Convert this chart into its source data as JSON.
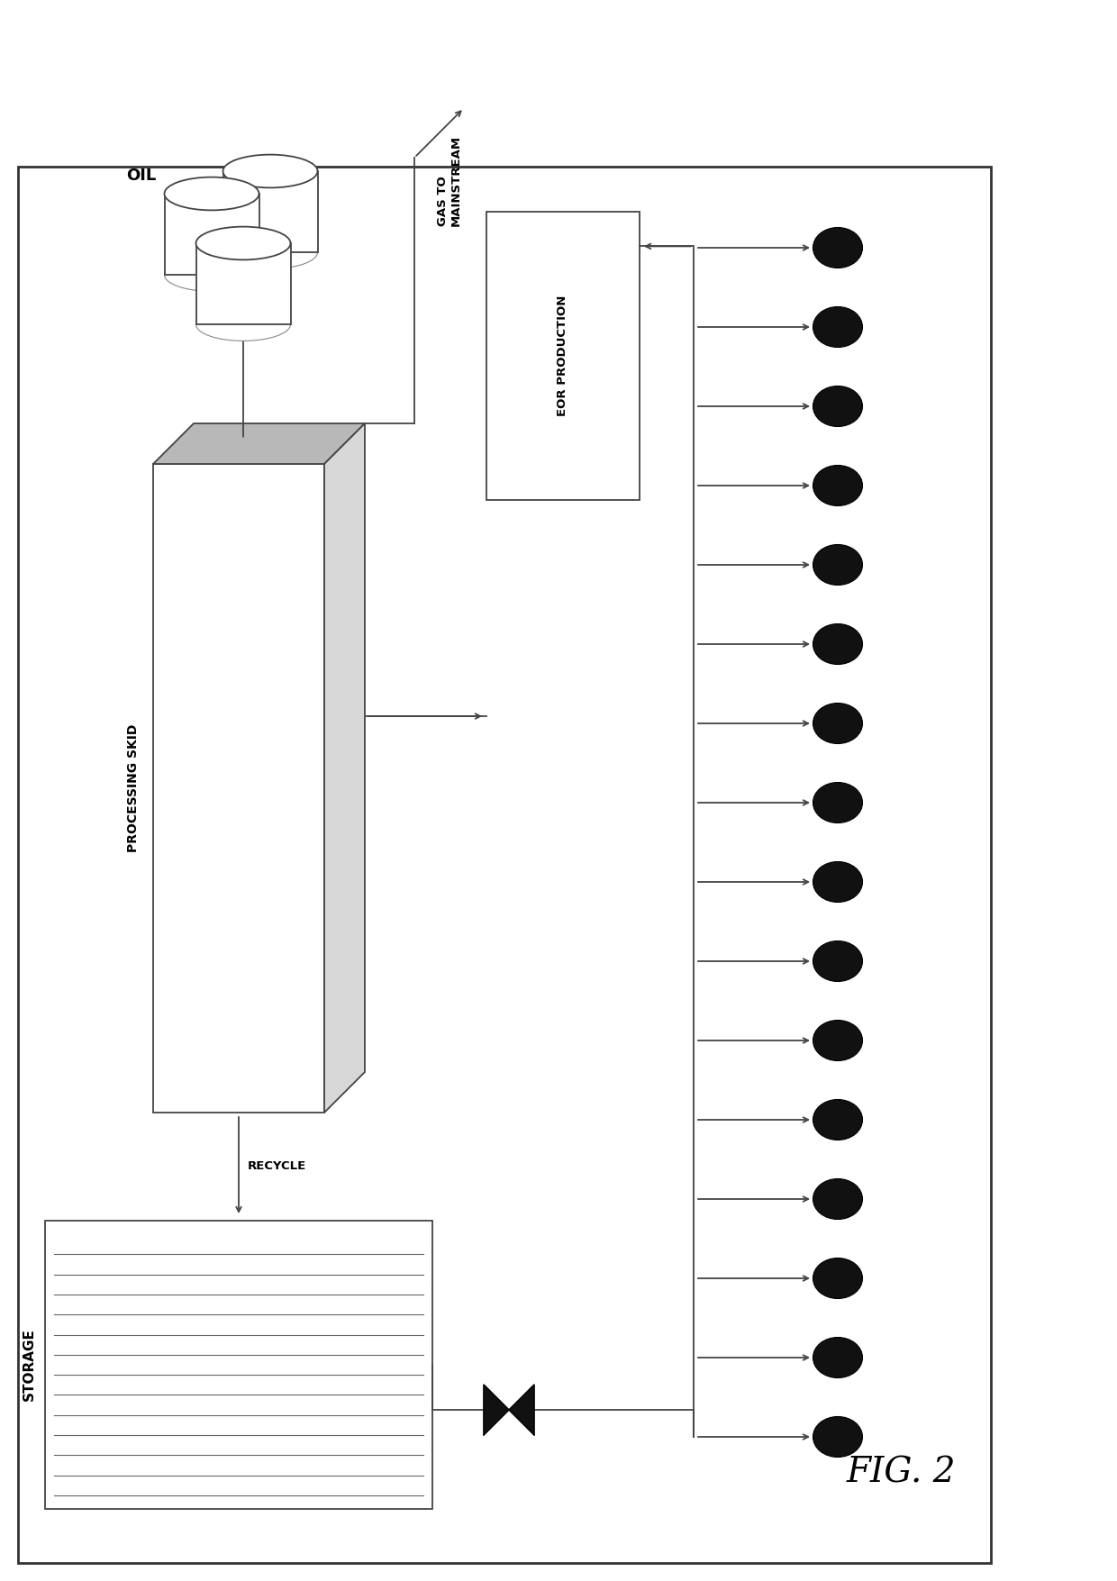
{
  "bg_color": "#ffffff",
  "border_color": "#333333",
  "fig_label": "FIG. 2",
  "num_wells": 16,
  "well_color": "#111111",
  "storage_stripes": 13,
  "labels": {
    "oil": "OIL",
    "gas": "GAS TO\nMAINSTREAM",
    "processing": "PROCESSING SKID",
    "recycle": "RECYCLE",
    "storage": "STORAGE",
    "eor": "EOR PRODUCTION"
  },
  "line_color": "#444444",
  "box_edge": "#444444",
  "skid_top_color": "#b8b8b8",
  "skid_right_color": "#d8d8d8"
}
